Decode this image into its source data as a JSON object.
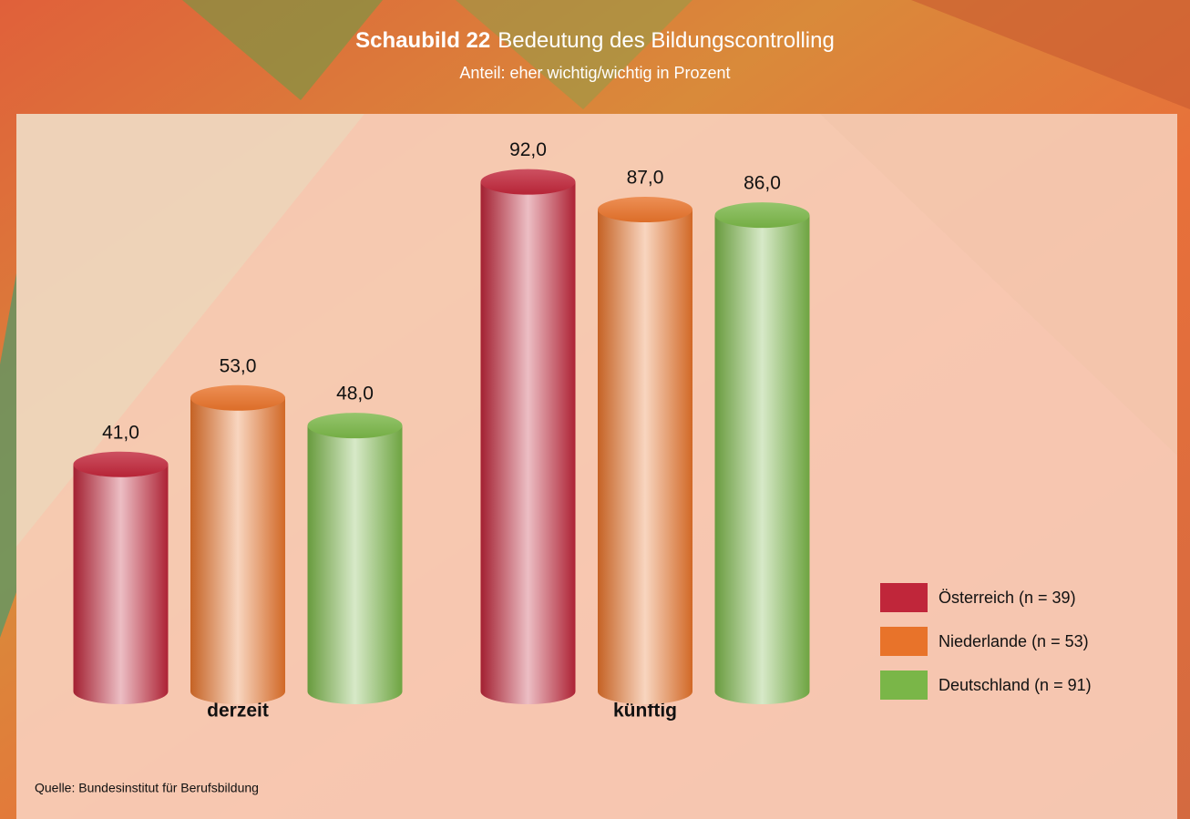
{
  "chart_data": {
    "type": "cylinder_bar",
    "title_label": "Schaubild 22",
    "title": "Bedeutung des Bildungscontrolling",
    "subtitle": "Anteil: eher wichtig/wichtig in Prozent",
    "categories": [
      "derzeit",
      "künftig"
    ],
    "series": [
      {
        "name": "Österreich (n = 39)",
        "color": "#c0263a",
        "values": [
          41,
          92
        ],
        "value_labels": [
          "41,0",
          "92,0"
        ]
      },
      {
        "name": "Niederlande (n = 53)",
        "color": "#e8732a",
        "values": [
          53,
          87
        ],
        "value_labels": [
          "53,0",
          "87,0"
        ]
      },
      {
        "name": "Deutschland (n = 91)",
        "color": "#7ab648",
        "values": [
          48,
          86
        ],
        "value_labels": [
          "48,0",
          "86,0"
        ]
      }
    ],
    "source": "Quelle: Bundesinstitut für Berufsbildung"
  }
}
